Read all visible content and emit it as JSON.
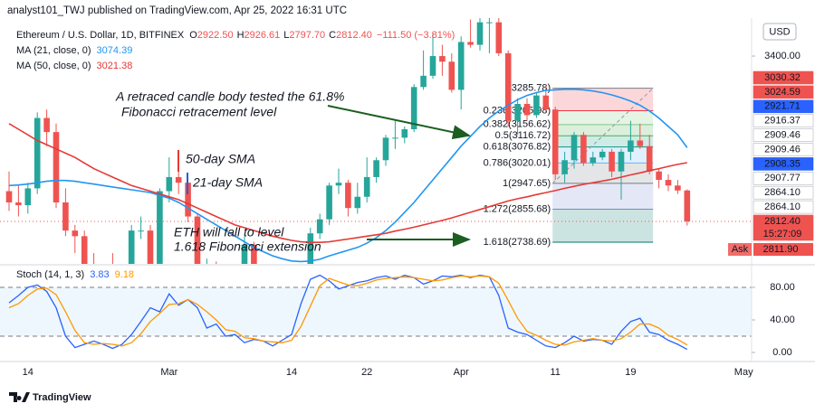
{
  "header": {
    "text": "analyst101_TWJ published on TradingView.com, Apr 25, 2022 16:31 UTC"
  },
  "footer": {
    "brand": "TradingView"
  },
  "chart_data": [
    {
      "type": "candlestick",
      "legend": {
        "name": "Ethereum / U.S. Dollar, 1D, BITFINEX",
        "fields": [
          {
            "key": "O",
            "label": "2922.50"
          },
          {
            "key": "H",
            "label": "2926.61"
          },
          {
            "key": "L",
            "label": "2797.70"
          },
          {
            "key": "C",
            "label": "2812.40"
          }
        ],
        "change": "−111.50 (−3.81%)"
      },
      "categories": [
        null,
        null,
        "14",
        null,
        null,
        null,
        null,
        null,
        null,
        null,
        null,
        null,
        null,
        null,
        null,
        null,
        null,
        "Mar",
        null,
        null,
        null,
        null,
        null,
        null,
        null,
        null,
        null,
        null,
        null,
        null,
        "14",
        null,
        null,
        null,
        null,
        null,
        null,
        null,
        "22",
        null,
        null,
        null,
        null,
        null,
        null,
        null,
        null,
        null,
        "Apr",
        null,
        null,
        null,
        null,
        null,
        null,
        null,
        null,
        null,
        "11",
        null,
        null,
        null,
        null,
        null,
        null,
        null,
        "19",
        null,
        null,
        null,
        null,
        null,
        null,
        null,
        null,
        null,
        null,
        null,
        "May"
      ],
      "open": [
        2920,
        2880,
        2870,
        2930,
        3180,
        3130,
        2880,
        2780,
        2760,
        2620,
        2570,
        2640,
        2590,
        2600,
        2780,
        2780,
        2620,
        2920,
        2970,
        2950,
        2830,
        2620,
        2660,
        2550,
        2500,
        2570,
        2730,
        2610,
        2560,
        2570,
        2520,
        2590,
        2620,
        2770,
        2820,
        2940,
        2950,
        2860,
        2900,
        2970,
        3030,
        3110,
        3110,
        3140,
        3290,
        3330,
        3400,
        3380,
        3280,
        3450,
        3440,
        3520,
        3520,
        3410,
        3170,
        3230,
        3190,
        3260,
        3210,
        2980,
        3030,
        3120,
        3020,
        3040,
        3060,
        2990,
        3060,
        3100,
        3080,
        2990,
        2960,
        2940,
        2922.5,
        null,
        null,
        null,
        null,
        null,
        null
      ],
      "high": [
        2990,
        2940,
        2950,
        3200,
        3210,
        3160,
        2930,
        2800,
        2780,
        2700,
        2660,
        2700,
        2610,
        2800,
        2830,
        2800,
        2930,
        3040,
        3000,
        2970,
        2840,
        2680,
        2670,
        2580,
        2590,
        2760,
        2740,
        2620,
        2590,
        2600,
        2600,
        2650,
        2790,
        2840,
        2950,
        3000,
        2960,
        2950,
        3040,
        3040,
        3120,
        3170,
        3150,
        3300,
        3420,
        3480,
        3440,
        3410,
        3470,
        3530,
        3580,
        3550,
        3550,
        3420,
        3250,
        3250,
        3270,
        3300,
        3220,
        3060,
        3130,
        3130,
        3060,
        3070,
        3070,
        3070,
        3170,
        3160,
        3120,
        3000,
        2980,
        2960,
        2926.61,
        null,
        null,
        null,
        null,
        null,
        null
      ],
      "low": [
        2850,
        2830,
        2840,
        2910,
        3080,
        2860,
        2760,
        2700,
        2600,
        2550,
        2500,
        2570,
        2300,
        2580,
        2750,
        2600,
        2600,
        2880,
        2910,
        2810,
        2610,
        2590,
        2530,
        2450,
        2490,
        2560,
        2580,
        2550,
        2550,
        2510,
        2510,
        2540,
        2610,
        2750,
        2800,
        2910,
        2830,
        2840,
        2880,
        2950,
        3010,
        3070,
        3090,
        3130,
        3280,
        3320,
        3330,
        3270,
        3210,
        3430,
        3420,
        3410,
        3400,
        3150,
        3120,
        3170,
        3180,
        3200,
        2960,
        2950,
        3000,
        3010,
        3010,
        3030,
        2970,
        2890,
        3030,
        3070,
        2980,
        2930,
        2920,
        2910,
        2797.7,
        null,
        null,
        null,
        null,
        null,
        null
      ],
      "close": [
        2880,
        2870,
        2930,
        3180,
        3130,
        2880,
        2780,
        2760,
        2620,
        2570,
        2640,
        2590,
        2600,
        2780,
        2780,
        2620,
        2920,
        2970,
        2950,
        2830,
        2620,
        2660,
        2550,
        2500,
        2570,
        2730,
        2610,
        2560,
        2570,
        2520,
        2590,
        2620,
        2770,
        2820,
        2940,
        2950,
        2860,
        2900,
        2970,
        3030,
        3110,
        3110,
        3140,
        3290,
        3330,
        3400,
        3380,
        3280,
        3450,
        3440,
        3520,
        3520,
        3410,
        3170,
        3230,
        3190,
        3260,
        3210,
        2980,
        3030,
        3120,
        3020,
        3040,
        3060,
        2990,
        3060,
        3100,
        3080,
        2990,
        2960,
        2940,
        2922.5,
        2812.4,
        null,
        null,
        null,
        null,
        null,
        null
      ],
      "up_color": "#26a69a",
      "down_color": "#ef5350",
      "series": [
        {
          "name": "MA (21, close, 0)",
          "color": "#2196f3",
          "values": [
            2940,
            2942,
            2945,
            2950,
            2955,
            2958,
            2958,
            2955,
            2950,
            2945,
            2940,
            2935,
            2930,
            2925,
            2920,
            2915,
            2905,
            2895,
            2880,
            2860,
            2840,
            2820,
            2800,
            2780,
            2760,
            2740,
            2720,
            2705,
            2690,
            2680,
            2672,
            2670,
            2672,
            2678,
            2690,
            2700,
            2710,
            2720,
            2735,
            2755,
            2780,
            2810,
            2845,
            2880,
            2920,
            2960,
            3000,
            3040,
            3080,
            3115,
            3150,
            3180,
            3205,
            3225,
            3245,
            3260,
            3270,
            3278,
            3280,
            3282,
            3282,
            3280,
            3276,
            3270,
            3262,
            3252,
            3240,
            3225,
            3205,
            3180,
            3150,
            3120,
            3074.39,
            null,
            null,
            null,
            null,
            null,
            null
          ]
        },
        {
          "name": "MA (50, close, 0)",
          "color": "#e53935",
          "values": [
            3160,
            3140,
            3120,
            3100,
            3085,
            3070,
            3055,
            3040,
            3020,
            3000,
            2985,
            2970,
            2955,
            2940,
            2930,
            2920,
            2910,
            2900,
            2890,
            2875,
            2860,
            2845,
            2830,
            2815,
            2800,
            2790,
            2780,
            2770,
            2760,
            2752,
            2745,
            2740,
            2738,
            2738,
            2740,
            2745,
            2750,
            2755,
            2760,
            2765,
            2770,
            2778,
            2785,
            2792,
            2800,
            2808,
            2816,
            2825,
            2835,
            2845,
            2855,
            2865,
            2875,
            2885,
            2893,
            2900,
            2908,
            2915,
            2922,
            2930,
            2937,
            2944,
            2950,
            2956,
            2962,
            2970,
            2978,
            2985,
            2993,
            3000,
            3008,
            3015,
            3021.38,
            null,
            null,
            null,
            null,
            null,
            null
          ]
        }
      ],
      "ylim": [
        2668,
        3535
      ],
      "yticks": [
        {
          "value": 3400,
          "label": "3400.00"
        }
      ],
      "currency": "USD",
      "fib_levels": [
        {
          "value": 3285.78,
          "label": "(3285.78)",
          "color": "#787b86"
        },
        {
          "value": 3205.98,
          "label": "0.236(3205.98)",
          "color": "#f23645"
        },
        {
          "value": 3156.62,
          "label": "0.382(3156.62)",
          "color": "#81c784"
        },
        {
          "value": 3116.72,
          "label": "0.5(3116.72)",
          "color": "#4caf50"
        },
        {
          "value": 3076.82,
          "label": "0.618(3076.82)",
          "color": "#089981"
        },
        {
          "value": 3020.01,
          "label": "0.786(3020.01)",
          "color": "#64b5f6"
        },
        {
          "value": 2947.65,
          "label": "1(2947.65)",
          "color": "#787b86"
        },
        {
          "value": 2855.68,
          "label": "1.272(2855.68)",
          "color": "#7986cb"
        },
        {
          "value": 2738.69,
          "label": "1.618(2738.69)",
          "color": "#00796b"
        }
      ],
      "annotations": [
        {
          "text": "A retraced candle body tested the 61.8%",
          "color": "#131722"
        },
        {
          "text": "Fibonacci retracement level",
          "color": "#131722"
        },
        {
          "text": "50-day SMA",
          "color": "#e53935"
        },
        {
          "text": "21-day SMA",
          "color": "#1e63d6"
        },
        {
          "text": "ETH will fall to level",
          "color": "#131722"
        },
        {
          "text": "1.618 Fibonacci extension",
          "color": "#131722"
        }
      ],
      "price_tags": [
        {
          "label": "3030.32",
          "color": "#ef5350",
          "text_color": "#ffffff"
        },
        {
          "label": "3024.59",
          "color": "#ef5350",
          "text_color": "#ffffff"
        },
        {
          "label": "2921.71",
          "color": "#2962ff",
          "text_color": "#ffffff"
        },
        {
          "label": "2916.37",
          "color": "#ffffff",
          "text_color": "#131722"
        },
        {
          "label": "2909.46",
          "color": "#ffffff",
          "text_color": "#131722"
        },
        {
          "label": "2909.46",
          "color": "#ffffff",
          "text_color": "#131722"
        },
        {
          "label": "2908.35",
          "color": "#2962ff",
          "text_color": "#ffffff"
        },
        {
          "label": "2907.77",
          "color": "#ffffff",
          "text_color": "#131722"
        },
        {
          "label": "2864.10",
          "color": "#ffffff",
          "text_color": "#131722"
        },
        {
          "label": "2864.10",
          "color": "#ffffff",
          "text_color": "#131722"
        },
        {
          "label": "2812.40",
          "color": "#ef5350",
          "text_color": "#ffffff"
        },
        {
          "label": "2811.90",
          "color": "#ef5350",
          "text_color": "#ffffff",
          "side": "Ask"
        }
      ],
      "countdown": "15:27:09"
    },
    {
      "type": "line",
      "title": "Stoch (14, 1, 3)",
      "series": [
        {
          "color": "#2962ff",
          "values": [
            61,
            70,
            80,
            83,
            75,
            55,
            20,
            6,
            10,
            14,
            10,
            5,
            10,
            22,
            38,
            55,
            50,
            72,
            58,
            65,
            55,
            30,
            35,
            20,
            22,
            12,
            16,
            14,
            8,
            15,
            22,
            60,
            90,
            95,
            88,
            78,
            82,
            86,
            88,
            92,
            94,
            90,
            95,
            92,
            84,
            88,
            94,
            93,
            95,
            92,
            95,
            93,
            70,
            30,
            25,
            22,
            15,
            8,
            6,
            12,
            20,
            14,
            16,
            15,
            10,
            26,
            38,
            42,
            25,
            22,
            15,
            10,
            3.83,
            null,
            null,
            null,
            null,
            null,
            null
          ]
        },
        {
          "color": "#ff9800",
          "values": [
            55,
            60,
            70,
            78,
            79,
            71,
            50,
            27,
            12,
            10,
            11,
            10,
            8,
            12,
            23,
            38,
            48,
            59,
            60,
            65,
            59,
            50,
            40,
            28,
            26,
            18,
            17,
            14,
            13,
            12,
            15,
            32,
            57,
            82,
            91,
            87,
            83,
            82,
            85,
            89,
            91,
            92,
            93,
            92,
            90,
            88,
            89,
            92,
            94,
            93,
            94,
            93,
            85,
            64,
            42,
            26,
            21,
            15,
            10,
            9,
            13,
            15,
            17,
            15,
            14,
            17,
            25,
            35,
            35,
            30,
            21,
            16,
            9.18,
            null,
            null,
            null,
            null,
            null,
            null
          ]
        }
      ],
      "band": [
        20,
        80
      ],
      "ylim": [
        -11.1,
        102.2
      ],
      "yticks": [
        {
          "value": 80,
          "label": "80.00"
        },
        {
          "value": 40,
          "label": "40.00"
        },
        {
          "value": 0,
          "label": "0.00"
        }
      ]
    }
  ]
}
